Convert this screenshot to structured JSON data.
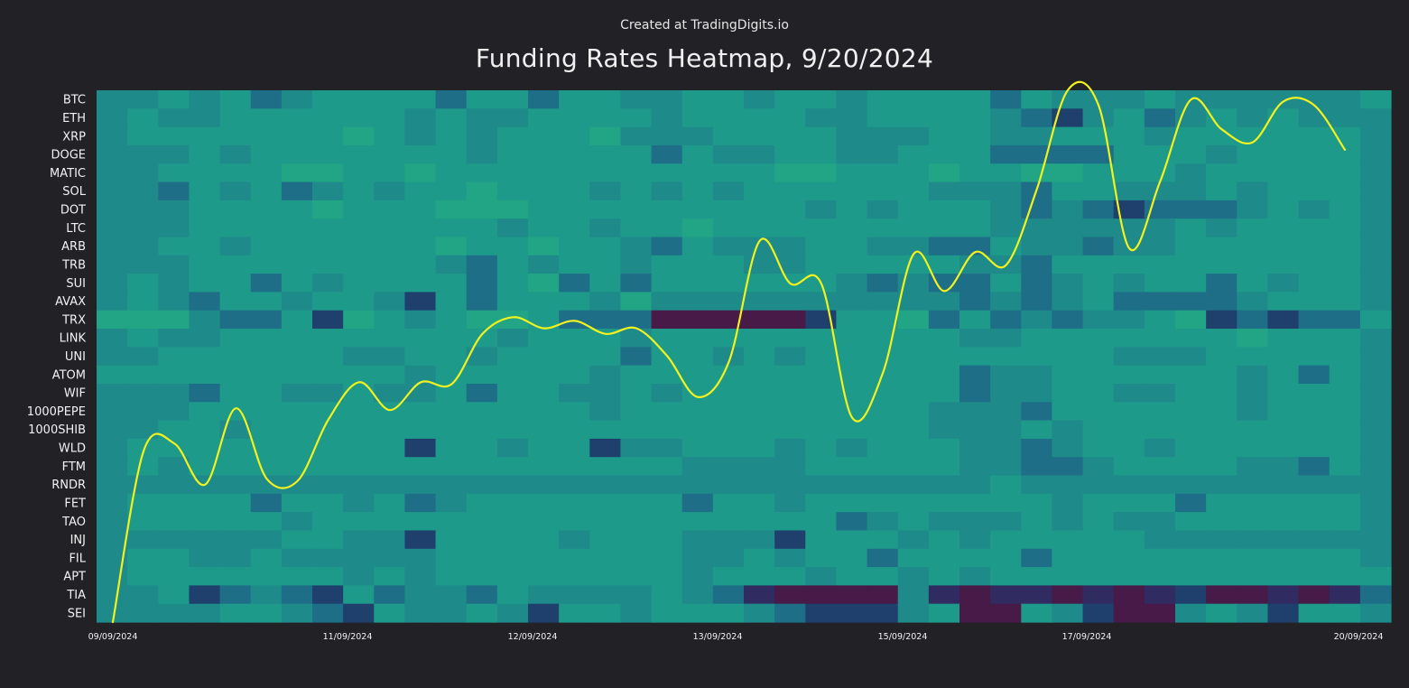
{
  "header": {
    "credit": "Created at TradingDigits.io",
    "title": "Funding Rates Heatmap, 9/20/2024"
  },
  "chart_data": {
    "type": "heatmap",
    "rows": [
      "BTC",
      "ETH",
      "XRP",
      "DOGE",
      "MATIC",
      "SOL",
      "DOT",
      "LTC",
      "ARB",
      "TRB",
      "SUI",
      "AVAX",
      "TRX",
      "LINK",
      "UNI",
      "ATOM",
      "WIF",
      "1000PEPE",
      "1000SHIB",
      "WLD",
      "FTM",
      "RNDR",
      "FET",
      "TAO",
      "INJ",
      "FIL",
      "APT",
      "TIA",
      "SEI"
    ],
    "x_ticks": [
      "09/09/2024",
      "11/09/2024",
      "12/09/2024",
      "13/09/2024",
      "15/09/2024",
      "17/09/2024",
      "20/09/2024"
    ],
    "columns": 42,
    "colors": {
      "background": "#222226",
      "line": "#f2f21e",
      "scale": [
        "#471a48",
        "#302c62",
        "#1f3f6d",
        "#1f6e88",
        "#1f8a8a",
        "#1e9a8a",
        "#22a585"
      ]
    },
    "cells": [
      "445453455553553554455455455553544454444445",
      "454455555545445555455554455554324534545444",
      "455555556545455564445555444554455545555554",
      "444545555555455555354455445553333555455554",
      "445555665565555555555566555655665554555554",
      "443545345455655545454555555444355444545554",
      "444555565556665555555554545554343233345454",
      "444555555555545545565555555554444445455554",
      "445545555556556554354445544335443445555554",
      "444555555554354554555445555544355555555554",
      "454553545555356353555555434335345455354554",
      "454355455425355546444444444434345333345554",
      "666433526545665333000002556353434456232335",
      "454455555555545554555555555544555555565554",
      "445555554455455553554545555555555444555554",
      "555555555545555545555555555534455555545354",
      "444355445445355445455555555534455445545554",
      "444555555555555545555555555444355555545554",
      "445545555555555555555555555444545555555554",
      "455555555525545524455545455544345545555554",
      "454555555555555555544445555544334555544354",
      "444444444444444444444444444445444444444444",
      "455553554534555555535545555555545553555554",
      "455555455555555555555555345444545445555554",
      "444444554425555455544425554545555544444444",
      "455445444445555555544545535555355555555554",
      "455555554545555555545554554545555555555555",
      "445234325344354444543100004101101012001013",
      "444455432544542554555432224500542004542554"
    ],
    "line": {
      "series": "",
      "y_values": [
        0,
        9.2,
        9.6,
        7.4,
        11.5,
        7.7,
        7.6,
        10.9,
        12.9,
        11.4,
        12.9,
        12.8,
        15.5,
        16.4,
        15.8,
        16.2,
        15.5,
        15.8,
        14.3,
        12.1,
        14.0,
        20.5,
        18.2,
        18.2,
        11.0,
        13.4,
        19.8,
        17.8,
        19.9,
        19.2,
        23.3,
        28.6,
        27.8,
        20.1,
        23.7,
        28.1,
        26.5,
        25.8,
        28.0,
        27.8,
        25.4
      ],
      "ylim": [
        0,
        28.6
      ]
    }
  }
}
